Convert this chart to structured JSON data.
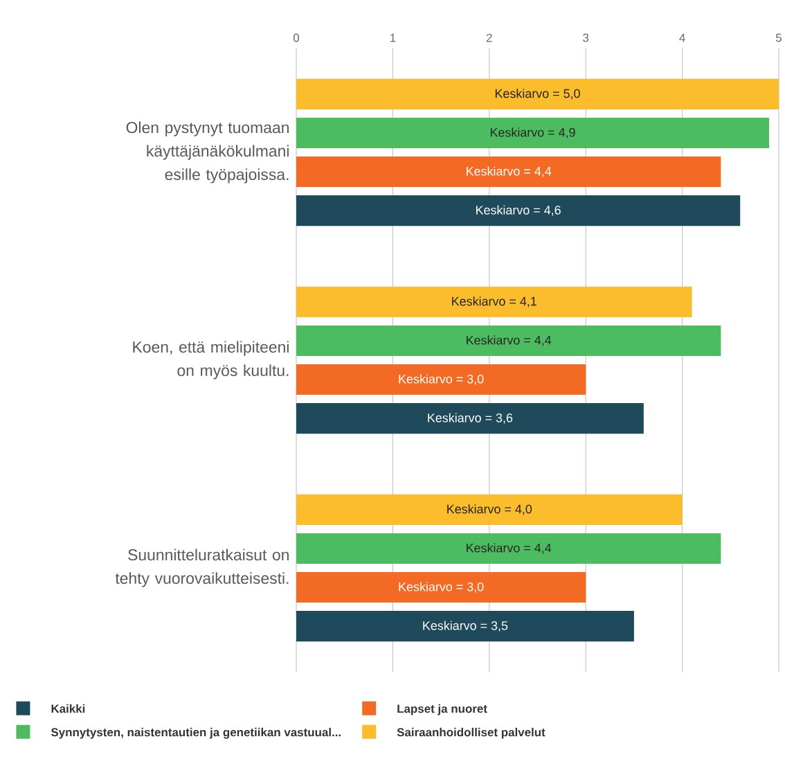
{
  "chart_data": {
    "type": "bar",
    "orientation": "horizontal",
    "categories": [
      "Olen pystynyt tuomaan käyttäjänäkökulmani esille työpajoissa.",
      "Koen, että mielipiteeni on myös kuultu.",
      "Suunnitteluratkaisut on tehty vuorovaikutteisesti."
    ],
    "series": [
      {
        "name": "Kaikki",
        "color": "#1e4a5c",
        "values": [
          4.6,
          3.6,
          3.5
        ],
        "value_labels": [
          "Keskiarvo = 4,6",
          "Keskiarvo = 3,6",
          "Keskiarvo = 3,5"
        ]
      },
      {
        "name": "Lapset ja nuoret",
        "color": "#f26a24",
        "values": [
          4.4,
          3.0,
          3.0
        ],
        "value_labels": [
          "Keskiarvo = 4,4",
          "Keskiarvo = 3,0",
          "Keskiarvo = 3,0"
        ]
      },
      {
        "name": "Synnytysten, naistentautien ja genetiikan vastuual...",
        "color": "#4dbb5f",
        "values": [
          4.9,
          4.4,
          4.4
        ],
        "value_labels": [
          "Keskiarvo = 4,9",
          "Keskiarvo = 4,4",
          "Keskiarvo = 4,4"
        ]
      },
      {
        "name": "Sairaanhoidolliset palvelut",
        "color": "#fbbd2b",
        "values": [
          5.0,
          4.1,
          4.0
        ],
        "value_labels": [
          "Keskiarvo = 5,0",
          "Keskiarvo = 4,1",
          "Keskiarvo = 4,0"
        ]
      }
    ],
    "xlim": [
      0,
      5
    ],
    "xticks": [
      0,
      1,
      2,
      3,
      4,
      5
    ],
    "grid": "x",
    "legend": "bottom"
  }
}
